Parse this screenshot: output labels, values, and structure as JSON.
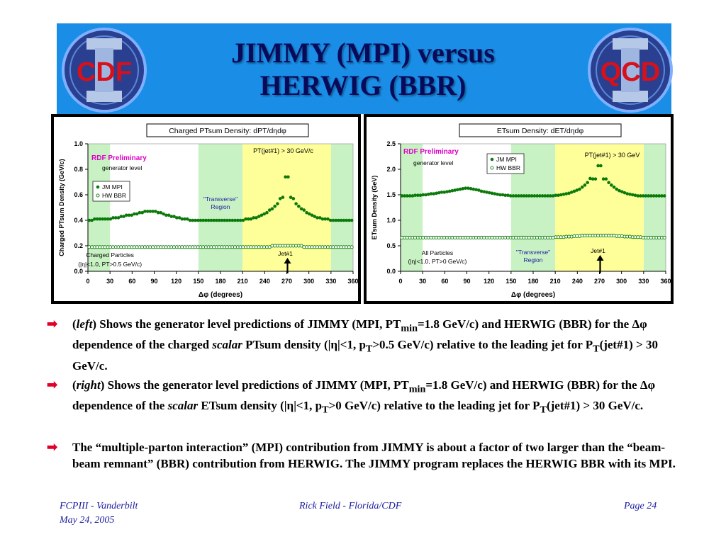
{
  "title": {
    "line1": "JIMMY (MPI) versus",
    "line2": "HERWIG (BBR)"
  },
  "logos": {
    "left_text": "CDF",
    "right_text": "QCD",
    "numeral": "II"
  },
  "colors": {
    "header_bg": "#1a8ee6",
    "title": "#0a0a5a",
    "jm": "#0b7a0b",
    "green_band": "#c9f2c4",
    "yellow_band": "#ffff99",
    "arrow_bullet": "#e0002a",
    "footer": "#1a1aa0"
  },
  "chart_data": [
    {
      "type": "scatter",
      "title": "Charged PTsum Density: dPT/dηdφ",
      "xlabel": "Δφ  (degrees)",
      "ylabel": "Charged PTsum Density (GeV/c)",
      "xlim": [
        0,
        360
      ],
      "ylim": [
        0,
        1.0
      ],
      "xticks": [
        0,
        30,
        60,
        90,
        120,
        150,
        180,
        210,
        240,
        270,
        300,
        330,
        360
      ],
      "yticks": [
        0.0,
        0.2,
        0.4,
        0.6,
        0.8,
        1.0
      ],
      "annotations": {
        "rdf": "RDF Preliminary",
        "gen": "generator level",
        "cut": "PT(jet#1) > 30 GeV/c",
        "transverse": "\"Transverse\" Region",
        "particles": "Charged Particles",
        "cuts": "(|η|<1.0, PT>0.5 GeV/c)",
        "jet": "Jet#1"
      },
      "legend": [
        "JM MPI",
        "HW BBR"
      ],
      "series": [
        {
          "name": "JM MPI",
          "x": [
            1.8,
            5.4,
            9,
            12.6,
            16.2,
            19.8,
            23.4,
            27,
            30.6,
            34.2,
            37.8,
            41.4,
            45,
            48.6,
            52.2,
            55.8,
            59.4,
            63,
            66.6,
            70.2,
            73.8,
            77.4,
            81,
            84.6,
            88.2,
            91.8,
            95.4,
            99,
            102.6,
            106.2,
            109.8,
            113.4,
            117,
            120.6,
            124.2,
            127.8,
            131.4,
            135,
            138.6,
            142.2,
            145.8,
            149.4,
            153,
            156.6,
            160.2,
            163.8,
            167.4,
            171,
            174.6,
            178.2,
            181.8,
            185.4,
            189,
            192.6,
            196.2,
            199.8,
            203.4,
            207,
            210.6,
            214.2,
            217.8,
            221.4,
            225,
            228.6,
            232.2,
            235.8,
            239.4,
            243,
            246.6,
            250.2,
            253.8,
            257.4,
            261,
            264.6,
            268.2,
            271.8,
            275.4,
            279,
            282.6,
            286.2,
            289.8,
            293.4,
            297,
            300.6,
            304.2,
            307.8,
            311.4,
            315,
            318.6,
            322.2,
            325.8,
            329.4,
            333,
            336.6,
            340.2,
            343.8,
            347.4,
            351,
            354.6,
            358.2
          ],
          "y": [
            0.4,
            0.4,
            0.41,
            0.41,
            0.41,
            0.41,
            0.41,
            0.41,
            0.41,
            0.42,
            0.42,
            0.42,
            0.43,
            0.43,
            0.44,
            0.44,
            0.44,
            0.45,
            0.45,
            0.46,
            0.46,
            0.47,
            0.47,
            0.47,
            0.47,
            0.47,
            0.46,
            0.46,
            0.45,
            0.44,
            0.44,
            0.43,
            0.43,
            0.42,
            0.42,
            0.41,
            0.41,
            0.41,
            0.4,
            0.4,
            0.4,
            0.4,
            0.4,
            0.4,
            0.4,
            0.4,
            0.4,
            0.4,
            0.4,
            0.4,
            0.4,
            0.4,
            0.4,
            0.4,
            0.4,
            0.4,
            0.4,
            0.4,
            0.4,
            0.41,
            0.41,
            0.41,
            0.42,
            0.42,
            0.43,
            0.44,
            0.45,
            0.46,
            0.48,
            0.49,
            0.51,
            0.53,
            0.57,
            0.58,
            0.74,
            0.74,
            0.58,
            0.57,
            0.53,
            0.51,
            0.49,
            0.48,
            0.46,
            0.45,
            0.44,
            0.43,
            0.42,
            0.42,
            0.41,
            0.41,
            0.41,
            0.4,
            0.4,
            0.4,
            0.4,
            0.4,
            0.4,
            0.4,
            0.4,
            0.4
          ]
        },
        {
          "name": "HW BBR",
          "x": [
            1.8,
            5.4,
            9,
            12.6,
            16.2,
            19.8,
            23.4,
            27,
            30.6,
            34.2,
            37.8,
            41.4,
            45,
            48.6,
            52.2,
            55.8,
            59.4,
            63,
            66.6,
            70.2,
            73.8,
            77.4,
            81,
            84.6,
            88.2,
            91.8,
            95.4,
            99,
            102.6,
            106.2,
            109.8,
            113.4,
            117,
            120.6,
            124.2,
            127.8,
            131.4,
            135,
            138.6,
            142.2,
            145.8,
            149.4,
            153,
            156.6,
            160.2,
            163.8,
            167.4,
            171,
            174.6,
            178.2,
            181.8,
            185.4,
            189,
            192.6,
            196.2,
            199.8,
            203.4,
            207,
            210.6,
            214.2,
            217.8,
            221.4,
            225,
            228.6,
            232.2,
            235.8,
            239.4,
            243,
            246.6,
            250.2,
            253.8,
            257.4,
            261,
            264.6,
            268.2,
            271.8,
            275.4,
            279,
            282.6,
            286.2,
            289.8,
            293.4,
            297,
            300.6,
            304.2,
            307.8,
            311.4,
            315,
            318.6,
            322.2,
            325.8,
            329.4,
            333,
            336.6,
            340.2,
            343.8,
            347.4,
            351,
            354.6,
            358.2
          ],
          "y": [
            0.19,
            0.19,
            0.19,
            0.19,
            0.19,
            0.19,
            0.19,
            0.19,
            0.19,
            0.19,
            0.19,
            0.19,
            0.19,
            0.19,
            0.19,
            0.19,
            0.19,
            0.19,
            0.19,
            0.19,
            0.19,
            0.19,
            0.19,
            0.19,
            0.19,
            0.19,
            0.19,
            0.19,
            0.19,
            0.19,
            0.19,
            0.19,
            0.19,
            0.19,
            0.19,
            0.19,
            0.19,
            0.19,
            0.19,
            0.19,
            0.19,
            0.19,
            0.19,
            0.19,
            0.19,
            0.19,
            0.19,
            0.19,
            0.19,
            0.19,
            0.19,
            0.19,
            0.19,
            0.19,
            0.19,
            0.19,
            0.19,
            0.19,
            0.19,
            0.19,
            0.19,
            0.19,
            0.19,
            0.19,
            0.19,
            0.19,
            0.19,
            0.19,
            0.19,
            0.2,
            0.2,
            0.2,
            0.2,
            0.2,
            0.2,
            0.2,
            0.2,
            0.2,
            0.2,
            0.2,
            0.2,
            0.19,
            0.19,
            0.19,
            0.19,
            0.19,
            0.19,
            0.19,
            0.19,
            0.19,
            0.19,
            0.19,
            0.19,
            0.19,
            0.19,
            0.19,
            0.19,
            0.19,
            0.19,
            0.19
          ]
        }
      ]
    },
    {
      "type": "scatter",
      "title": "ETsum Density: dET/dηdφ",
      "xlabel": "Δφ  (degrees)",
      "ylabel": "ETsum Density (GeV)",
      "xlim": [
        0,
        360
      ],
      "ylim": [
        0,
        2.5
      ],
      "xticks": [
        0,
        30,
        60,
        90,
        120,
        150,
        180,
        210,
        240,
        270,
        300,
        330,
        360
      ],
      "yticks": [
        0.0,
        0.5,
        1.0,
        1.5,
        2.0,
        2.5
      ],
      "annotations": {
        "rdf": "RDF Preliminary",
        "gen": "generator level",
        "cut": "PT(jet#1) > 30 GeV",
        "transverse": "\"Transverse\" Region",
        "particles": "All Particles",
        "cuts": "(|η|<1.0, PT>0 GeV/c)",
        "jet": "Jet#1"
      },
      "legend": [
        "JM MPI",
        "HW BBR"
      ],
      "series": [
        {
          "name": "JM MPI",
          "x": [
            1.8,
            5.4,
            9,
            12.6,
            16.2,
            19.8,
            23.4,
            27,
            30.6,
            34.2,
            37.8,
            41.4,
            45,
            48.6,
            52.2,
            55.8,
            59.4,
            63,
            66.6,
            70.2,
            73.8,
            77.4,
            81,
            84.6,
            88.2,
            91.8,
            95.4,
            99,
            102.6,
            106.2,
            109.8,
            113.4,
            117,
            120.6,
            124.2,
            127.8,
            131.4,
            135,
            138.6,
            142.2,
            145.8,
            149.4,
            153,
            156.6,
            160.2,
            163.8,
            167.4,
            171,
            174.6,
            178.2,
            181.8,
            185.4,
            189,
            192.6,
            196.2,
            199.8,
            203.4,
            207,
            210.6,
            214.2,
            217.8,
            221.4,
            225,
            228.6,
            232.2,
            235.8,
            239.4,
            243,
            246.6,
            250.2,
            253.8,
            257.4,
            261,
            264.6,
            268.2,
            271.8,
            275.4,
            279,
            282.6,
            286.2,
            289.8,
            293.4,
            297,
            300.6,
            304.2,
            307.8,
            311.4,
            315,
            318.6,
            322.2,
            325.8,
            329.4,
            333,
            336.6,
            340.2,
            343.8,
            347.4,
            351,
            354.6,
            358.2
          ],
          "y": [
            1.48,
            1.48,
            1.48,
            1.48,
            1.48,
            1.49,
            1.49,
            1.49,
            1.5,
            1.5,
            1.51,
            1.52,
            1.52,
            1.53,
            1.54,
            1.55,
            1.55,
            1.56,
            1.57,
            1.58,
            1.59,
            1.6,
            1.61,
            1.62,
            1.63,
            1.63,
            1.62,
            1.61,
            1.6,
            1.59,
            1.57,
            1.56,
            1.55,
            1.54,
            1.53,
            1.52,
            1.51,
            1.5,
            1.5,
            1.49,
            1.49,
            1.48,
            1.48,
            1.48,
            1.48,
            1.48,
            1.48,
            1.48,
            1.48,
            1.48,
            1.48,
            1.48,
            1.48,
            1.48,
            1.48,
            1.48,
            1.48,
            1.48,
            1.49,
            1.49,
            1.5,
            1.51,
            1.52,
            1.53,
            1.55,
            1.57,
            1.59,
            1.61,
            1.65,
            1.69,
            1.74,
            1.82,
            1.81,
            1.81,
            2.07,
            2.07,
            1.81,
            1.81,
            1.74,
            1.69,
            1.65,
            1.61,
            1.58,
            1.56,
            1.54,
            1.52,
            1.51,
            1.5,
            1.49,
            1.48,
            1.48,
            1.48,
            1.48,
            1.48,
            1.48,
            1.48,
            1.48,
            1.48,
            1.48,
            1.48
          ]
        },
        {
          "name": "HW BBR",
          "x": [
            1.8,
            5.4,
            9,
            12.6,
            16.2,
            19.8,
            23.4,
            27,
            30.6,
            34.2,
            37.8,
            41.4,
            45,
            48.6,
            52.2,
            55.8,
            59.4,
            63,
            66.6,
            70.2,
            73.8,
            77.4,
            81,
            84.6,
            88.2,
            91.8,
            95.4,
            99,
            102.6,
            106.2,
            109.8,
            113.4,
            117,
            120.6,
            124.2,
            127.8,
            131.4,
            135,
            138.6,
            142.2,
            145.8,
            149.4,
            153,
            156.6,
            160.2,
            163.8,
            167.4,
            171,
            174.6,
            178.2,
            181.8,
            185.4,
            189,
            192.6,
            196.2,
            199.8,
            203.4,
            207,
            210.6,
            214.2,
            217.8,
            221.4,
            225,
            228.6,
            232.2,
            235.8,
            239.4,
            243,
            246.6,
            250.2,
            253.8,
            257.4,
            261,
            264.6,
            268.2,
            271.8,
            275.4,
            279,
            282.6,
            286.2,
            289.8,
            293.4,
            297,
            300.6,
            304.2,
            307.8,
            311.4,
            315,
            318.6,
            322.2,
            325.8,
            329.4,
            333,
            336.6,
            340.2,
            343.8,
            347.4,
            351,
            354.6,
            358.2
          ],
          "y": [
            0.66,
            0.66,
            0.66,
            0.66,
            0.66,
            0.66,
            0.66,
            0.66,
            0.66,
            0.66,
            0.66,
            0.66,
            0.66,
            0.66,
            0.66,
            0.66,
            0.66,
            0.66,
            0.66,
            0.66,
            0.66,
            0.66,
            0.66,
            0.66,
            0.66,
            0.66,
            0.66,
            0.66,
            0.66,
            0.66,
            0.66,
            0.66,
            0.66,
            0.66,
            0.66,
            0.66,
            0.66,
            0.66,
            0.66,
            0.66,
            0.66,
            0.66,
            0.66,
            0.66,
            0.66,
            0.66,
            0.66,
            0.66,
            0.66,
            0.66,
            0.66,
            0.66,
            0.66,
            0.66,
            0.66,
            0.66,
            0.66,
            0.66,
            0.67,
            0.67,
            0.67,
            0.67,
            0.68,
            0.68,
            0.68,
            0.69,
            0.69,
            0.69,
            0.7,
            0.7,
            0.7,
            0.7,
            0.7,
            0.7,
            0.7,
            0.7,
            0.7,
            0.7,
            0.7,
            0.7,
            0.7,
            0.69,
            0.69,
            0.69,
            0.68,
            0.68,
            0.68,
            0.67,
            0.67,
            0.67,
            0.67,
            0.66,
            0.66,
            0.66,
            0.66,
            0.66,
            0.66,
            0.66,
            0.66,
            0.66
          ]
        }
      ]
    }
  ],
  "bullets": [
    {
      "pre": "(",
      "italic1": "left",
      "mid1": ") Shows the generator level predictions of JIMMY (MPI, PT",
      "sub1": "min",
      "mid2": "=1.8 GeV/c) and HERWIG (BBR) for the Δφ dependence of the charged ",
      "italic2": "scalar",
      "mid3": " PTsum density (|η|<1, p",
      "sub2": "T",
      "mid4": ">0.5 GeV/c) relative to the leading jet for P",
      "sub3": "T",
      "post": "(jet#1) > 30 GeV/c."
    },
    {
      "pre": "(",
      "italic1": "right",
      "mid1": ") Shows the generator level predictions of JIMMY (MPI, PT",
      "sub1": "min",
      "mid2": "=1.8 GeV/c) and HERWIG (BBR) for the Δφ dependence of the ",
      "italic2": "scalar",
      "mid3": " ETsum density (|η|<1, p",
      "sub2": "T",
      "mid4": ">0 GeV/c) relative to the leading jet for P",
      "sub3": "T",
      "post": "(jet#1) > 30 GeV/c."
    },
    {
      "text": "The “multiple-parton interaction” (MPI) contribution from JIMMY is about a factor of two larger than the “beam-beam remnant” (BBR) contribution from HERWIG.  The JIMMY program replaces the HERWIG BBR with its MPI."
    }
  ],
  "footer": {
    "left1": "FCPIII - Vanderbilt",
    "left2": "May 24, 2005",
    "center": "Rick Field - Florida/CDF",
    "right": "Page 24"
  }
}
